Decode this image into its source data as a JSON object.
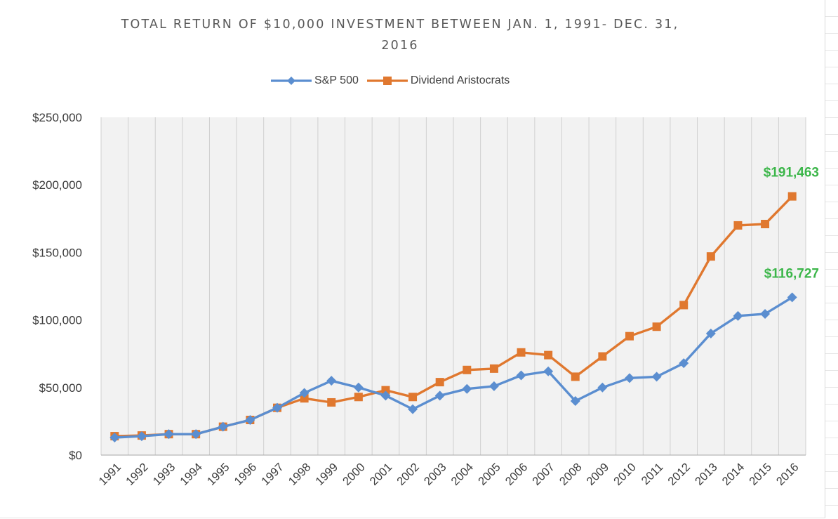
{
  "chart_data": {
    "type": "line",
    "title": "TOTAL RETURN OF $10,000 INVESTMENT BETWEEN JAN. 1, 1991- DEC. 31, 2016",
    "title_lines": [
      "TOTAL RETURN OF $10,000 INVESTMENT BETWEEN JAN. 1, 1991- DEC. 31,",
      "2016"
    ],
    "xlabel": "",
    "ylabel": "",
    "categories": [
      "1991",
      "1992",
      "1993",
      "1994",
      "1995",
      "1996",
      "1997",
      "1998",
      "1999",
      "2000",
      "2001",
      "2002",
      "2003",
      "2004",
      "2005",
      "2006",
      "2007",
      "2008",
      "2009",
      "2010",
      "2011",
      "2012",
      "2013",
      "2014",
      "2015",
      "2016"
    ],
    "ylim": [
      0,
      250000
    ],
    "yticks": [
      0,
      50000,
      100000,
      150000,
      200000,
      250000
    ],
    "ytick_labels": [
      "$0",
      "$50,000",
      "$100,000",
      "$150,000",
      "$200,000",
      "$250,000"
    ],
    "grid": "vertical",
    "legend_position": "top",
    "series": [
      {
        "name": "S&P 500",
        "marker": "diamond",
        "color": "#5b8ed0",
        "values": [
          13000,
          14000,
          15500,
          15500,
          21000,
          26000,
          35000,
          46000,
          55000,
          50000,
          44000,
          34000,
          44000,
          49000,
          51000,
          59000,
          62000,
          40000,
          50000,
          57000,
          58000,
          68000,
          90000,
          103000,
          104500,
          116727
        ]
      },
      {
        "name": "Dividend Aristocrats",
        "marker": "square",
        "color": "#e0782f",
        "values": [
          14000,
          14500,
          15500,
          15500,
          21000,
          26000,
          35000,
          42000,
          39000,
          43000,
          48000,
          43000,
          54000,
          63000,
          64000,
          76000,
          74000,
          58000,
          73000,
          88000,
          95000,
          111000,
          147000,
          170000,
          171000,
          191463
        ]
      }
    ],
    "annotations": [
      {
        "text": "$191,463",
        "series": "Dividend Aristocrats",
        "category": "2016",
        "color": "#3cb64a"
      },
      {
        "text": "$116,727",
        "series": "S&P 500",
        "category": "2016",
        "color": "#3cb64a"
      }
    ],
    "colors": {
      "plot_background": "#f2f2f2",
      "grid": "#d0d0d0",
      "axis": "#a6a6a6"
    }
  }
}
